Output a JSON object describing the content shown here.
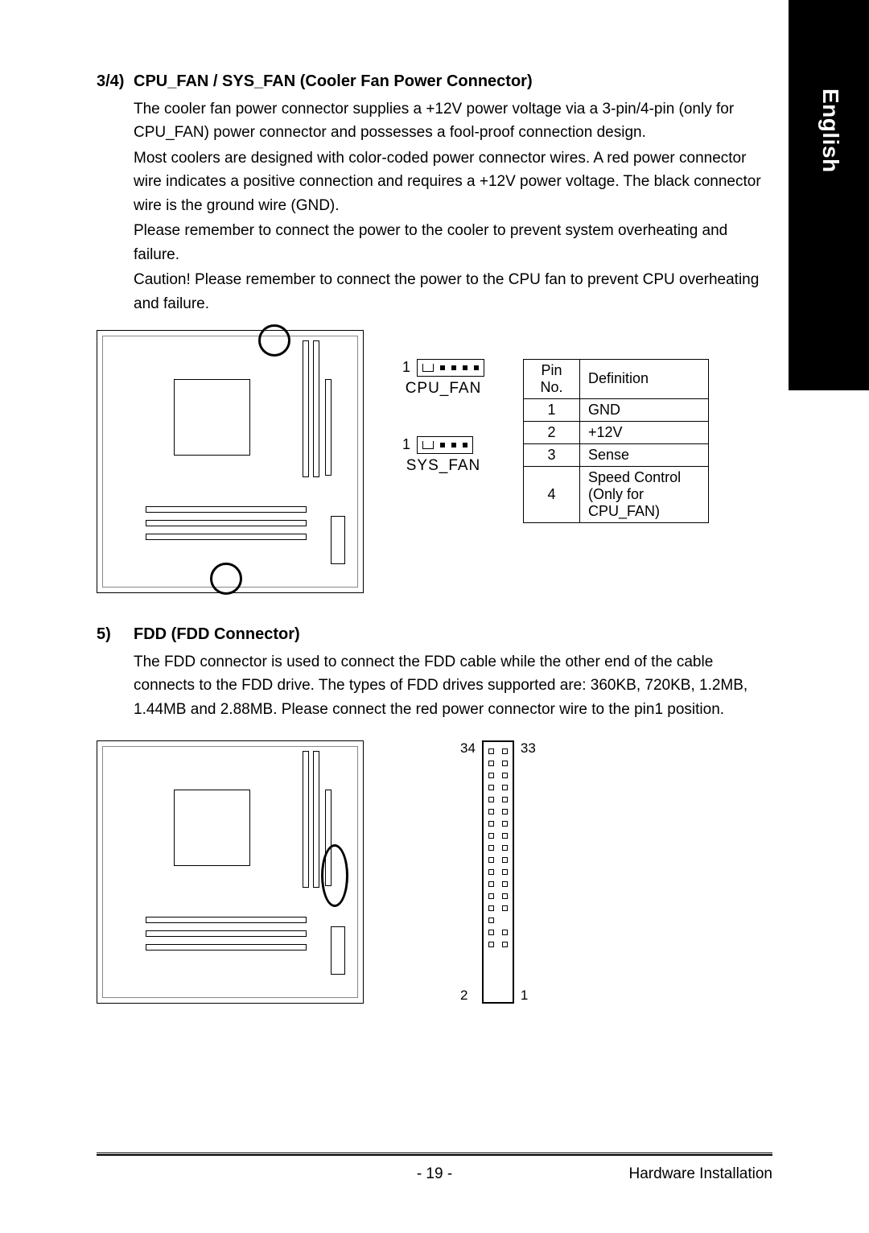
{
  "sideTab": "English",
  "section34": {
    "num": "3/4)",
    "title": "CPU_FAN / SYS_FAN (Cooler Fan Power Connector)",
    "p1": "The cooler fan power connector supplies a +12V power voltage via a 3-pin/4-pin (only for CPU_FAN) power connector and possesses a fool-proof connection design.",
    "p2": "Most coolers are designed with color-coded power connector wires. A red power connector wire indicates a positive connection and requires a +12V power voltage. The black connector wire is the ground wire (GND).",
    "p3": "Please remember to connect the power to the cooler to prevent system overheating and failure.",
    "p4": "Caution!    Please remember to connect the power to the CPU fan to prevent CPU overheating and failure."
  },
  "connectors": {
    "cpu": {
      "pin1": "1",
      "label": "CPU_FAN",
      "pinCount": 4
    },
    "sys": {
      "pin1": "1",
      "label": "SYS_FAN",
      "pinCount": 3
    }
  },
  "pinTable": {
    "headers": [
      "Pin No.",
      "Definition"
    ],
    "rows": [
      [
        "1",
        "GND"
      ],
      [
        "2",
        "+12V"
      ],
      [
        "3",
        "Sense"
      ],
      [
        "4",
        "Speed Control"
      ]
    ],
    "note": "(Only for CPU_FAN)"
  },
  "section5": {
    "num": "5)",
    "title": "FDD (FDD Connector)",
    "p1": "The FDD connector is used to connect the FDD cable while the other end of the cable connects to the FDD drive. The types of FDD drives supported are: 360KB, 720KB, 1.2MB, 1.44MB and 2.88MB. Please connect the red power connector wire to the pin1 position."
  },
  "fdd": {
    "topLeft": "34",
    "topRight": "33",
    "bottomLeft": "2",
    "bottomRight": "1",
    "rowCount": 17,
    "missingRowIndex": 14
  },
  "footer": {
    "page": "- 19 -",
    "right": "Hardware Installation"
  },
  "colors": {
    "text": "#000000",
    "background": "#ffffff",
    "sidebar": "#000000",
    "sidebarText": "#ffffff"
  }
}
